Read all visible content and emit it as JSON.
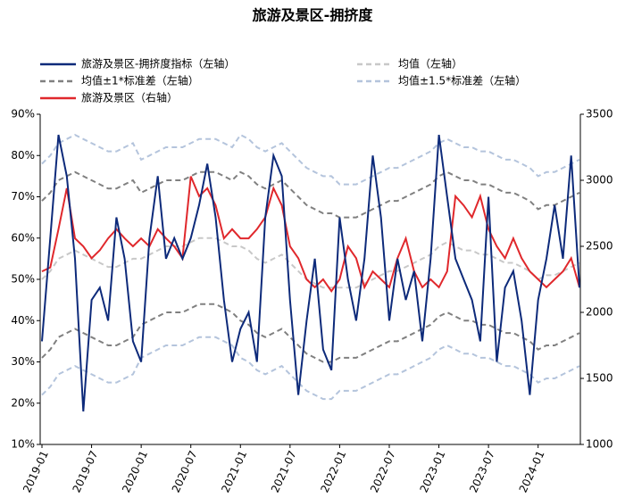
{
  "chart_data": {
    "type": "line",
    "title": "旅游及景区-拥挤度",
    "categories": [
      "2019-01",
      "2019-02",
      "2019-03",
      "2019-04",
      "2019-05",
      "2019-06",
      "2019-07",
      "2019-08",
      "2019-09",
      "2019-10",
      "2019-11",
      "2019-12",
      "2020-01",
      "2020-02",
      "2020-03",
      "2020-04",
      "2020-05",
      "2020-06",
      "2020-07",
      "2020-08",
      "2020-09",
      "2020-10",
      "2020-11",
      "2020-12",
      "2021-01",
      "2021-02",
      "2021-03",
      "2021-04",
      "2021-05",
      "2021-06",
      "2021-07",
      "2021-08",
      "2021-09",
      "2021-10",
      "2021-11",
      "2021-12",
      "2022-01",
      "2022-02",
      "2022-03",
      "2022-04",
      "2022-05",
      "2022-06",
      "2022-07",
      "2022-08",
      "2022-09",
      "2022-10",
      "2022-11",
      "2022-12",
      "2023-01",
      "2023-02",
      "2023-03",
      "2023-04",
      "2023-05",
      "2023-06",
      "2023-07",
      "2023-08",
      "2023-09",
      "2023-10",
      "2023-11",
      "2023-12",
      "2024-01",
      "2024-02",
      "2024-03",
      "2024-04",
      "2024-05",
      "2024-06"
    ],
    "xticks": [
      "2019-01",
      "2019-07",
      "2020-01",
      "2020-07",
      "2021-01",
      "2021-07",
      "2022-01",
      "2022-07",
      "2023-01",
      "2023-07",
      "2024-01"
    ],
    "ylim": [
      10,
      90
    ],
    "yticks": [
      {
        "value": 10,
        "label": "10%"
      },
      {
        "value": 20,
        "label": "20%"
      },
      {
        "value": 30,
        "label": "30%"
      },
      {
        "value": 40,
        "label": "40%"
      },
      {
        "value": 50,
        "label": "50%"
      },
      {
        "value": 60,
        "label": "60%"
      },
      {
        "value": 70,
        "label": "70%"
      },
      {
        "value": 80,
        "label": "80%"
      },
      {
        "value": 90,
        "label": "90%"
      }
    ],
    "y2lim": [
      1000,
      3500
    ],
    "y2ticks": [
      1000,
      1500,
      2000,
      2500,
      3000,
      3500
    ],
    "series": [
      {
        "name": "旅游及景区-拥挤度指标（左轴）",
        "color": "#0d2a7a",
        "dashed": false,
        "values": [
          35,
          60,
          85,
          75,
          55,
          18,
          45,
          48,
          40,
          65,
          55,
          35,
          30,
          60,
          75,
          55,
          60,
          55,
          60,
          68,
          78,
          65,
          45,
          30,
          38,
          42,
          30,
          65,
          80,
          75,
          45,
          22,
          40,
          55,
          33,
          28,
          65,
          50,
          40,
          55,
          80,
          65,
          40,
          55,
          45,
          52,
          35,
          55,
          85,
          70,
          55,
          50,
          45,
          35,
          70,
          30,
          48,
          52,
          40,
          22,
          45,
          55,
          68,
          55,
          80,
          48
        ]
      },
      {
        "name": "均值（左轴）",
        "color": "#c8c8c8",
        "dashed": true,
        "values": [
          50,
          52,
          55,
          56,
          57,
          56,
          55,
          54,
          53,
          53,
          54,
          55,
          55,
          56,
          57,
          58,
          58,
          58,
          59,
          60,
          60,
          60,
          59,
          58,
          58,
          57,
          55,
          54,
          55,
          56,
          54,
          52,
          50,
          49,
          48,
          48,
          48,
          48,
          48,
          49,
          50,
          51,
          52,
          52,
          53,
          54,
          55,
          56,
          58,
          59,
          58,
          57,
          57,
          56,
          56,
          55,
          54,
          54,
          53,
          52,
          50,
          51,
          51,
          52,
          53,
          54
        ]
      },
      {
        "name": "均值±1*标准差（左轴）",
        "color": "#808080",
        "dashed": true,
        "values": [
          [
            69,
            71,
            74,
            75,
            76,
            75,
            74,
            73,
            72,
            72,
            73,
            74,
            71,
            72,
            73,
            74,
            74,
            74,
            75,
            76,
            76,
            76,
            75,
            74,
            76,
            75,
            73,
            72,
            73,
            74,
            72,
            70,
            68,
            67,
            66,
            66,
            65,
            65,
            65,
            66,
            67,
            68,
            69,
            69,
            70,
            71,
            72,
            73,
            75,
            76,
            75,
            74,
            74,
            73,
            73,
            72,
            71,
            71,
            70,
            69,
            67,
            68,
            68,
            69,
            70,
            71
          ],
          [
            31,
            33,
            36,
            37,
            38,
            37,
            36,
            35,
            34,
            34,
            35,
            36,
            39,
            40,
            41,
            42,
            42,
            42,
            43,
            44,
            44,
            44,
            43,
            42,
            40,
            39,
            37,
            36,
            37,
            38,
            36,
            34,
            32,
            31,
            30,
            30,
            31,
            31,
            31,
            32,
            33,
            34,
            35,
            35,
            36,
            37,
            38,
            39,
            41,
            42,
            41,
            40,
            40,
            39,
            39,
            38,
            37,
            37,
            36,
            35,
            33,
            34,
            34,
            35,
            36,
            37
          ]
        ]
      },
      {
        "name": "均值±1.5*标准差（左轴）",
        "color": "#b4c4dc",
        "dashed": true,
        "values": [
          [
            78,
            80,
            83,
            84,
            85,
            84,
            83,
            82,
            81,
            81,
            82,
            83,
            79,
            80,
            81,
            82,
            82,
            82,
            83,
            84,
            84,
            84,
            83,
            82,
            85,
            84,
            82,
            81,
            82,
            83,
            81,
            79,
            77,
            76,
            75,
            75,
            73,
            73,
            73,
            74,
            75,
            76,
            77,
            77,
            78,
            79,
            80,
            81,
            83,
            84,
            83,
            82,
            82,
            81,
            81,
            80,
            79,
            79,
            78,
            77,
            75,
            76,
            76,
            77,
            78,
            79
          ],
          [
            22,
            24,
            27,
            28,
            29,
            28,
            27,
            26,
            25,
            25,
            26,
            27,
            31,
            32,
            33,
            34,
            34,
            34,
            35,
            36,
            36,
            36,
            35,
            34,
            31,
            30,
            28,
            27,
            28,
            29,
            27,
            25,
            23,
            22,
            21,
            21,
            23,
            23,
            23,
            24,
            25,
            26,
            27,
            27,
            28,
            29,
            30,
            31,
            33,
            34,
            33,
            32,
            32,
            31,
            31,
            30,
            29,
            29,
            28,
            27,
            25,
            26,
            26,
            27,
            28,
            29
          ]
        ]
      },
      {
        "name": "旅游及景区（右轴）",
        "color": "#e0282c",
        "dashed": false,
        "axis": "y2",
        "values": [
          2310,
          2340,
          2630,
          2940,
          2560,
          2500,
          2410,
          2470,
          2560,
          2630,
          2560,
          2500,
          2560,
          2500,
          2630,
          2560,
          2500,
          2410,
          3030,
          2880,
          2940,
          2810,
          2560,
          2630,
          2560,
          2560,
          2630,
          2720,
          2940,
          2810,
          2500,
          2410,
          2250,
          2190,
          2250,
          2160,
          2250,
          2500,
          2410,
          2190,
          2310,
          2250,
          2190,
          2410,
          2560,
          2310,
          2190,
          2250,
          2190,
          2310,
          2880,
          2810,
          2720,
          2880,
          2630,
          2500,
          2410,
          2560,
          2410,
          2310,
          2250,
          2190,
          2250,
          2310,
          2410,
          2190
        ]
      }
    ]
  }
}
